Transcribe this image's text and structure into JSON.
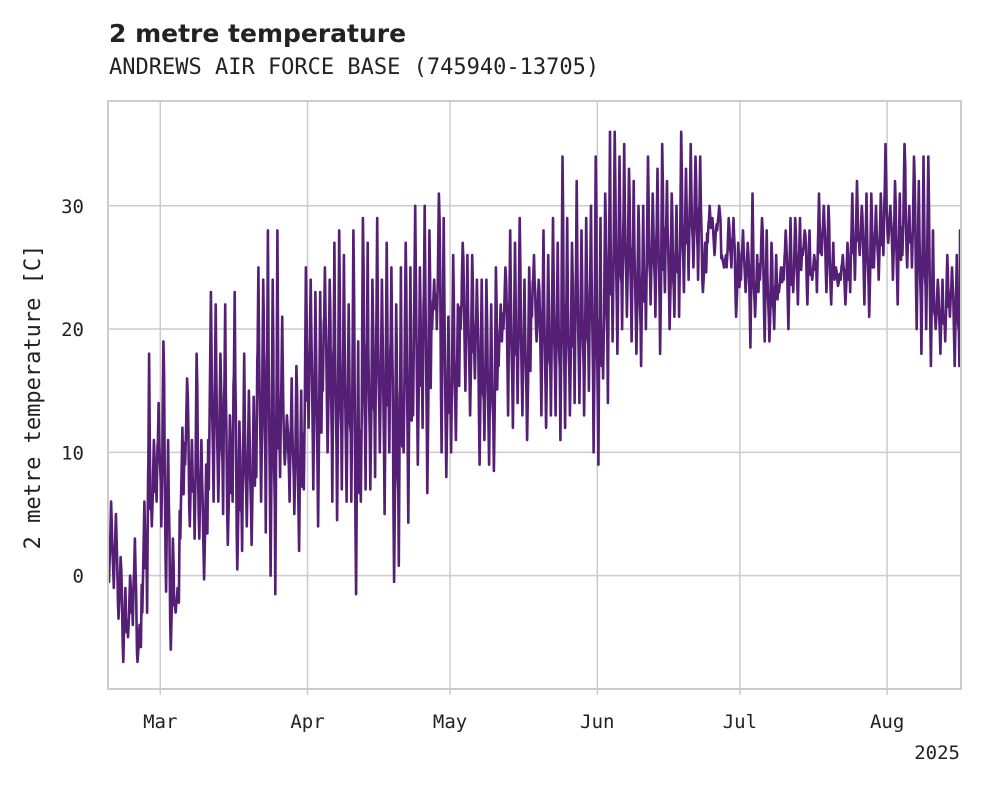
{
  "chart_data": {
    "type": "line",
    "title": "2 metre temperature",
    "subtitle": "ANDREWS AIR FORCE BASE (745940-13705)",
    "ylabel": "2 metre temperature [C]",
    "xlabel": "",
    "x_start": "2025-02-18",
    "x_end": "2025-08-16",
    "x_ticks": [
      {
        "label": "Mar",
        "date": "2025-03-01"
      },
      {
        "label": "Apr",
        "date": "2025-04-01"
      },
      {
        "label": "May",
        "date": "2025-05-01"
      },
      {
        "label": "Jun",
        "date": "2025-06-01"
      },
      {
        "label": "Jul",
        "date": "2025-07-01"
      },
      {
        "label": "Aug",
        "date": "2025-08-01"
      }
    ],
    "x_year_label": "2025",
    "ylim": [
      -9.2,
      38.5
    ],
    "y_ticks": [
      0,
      10,
      20,
      30
    ],
    "grid": true,
    "legend": "none",
    "color": "#541f74",
    "series": [
      {
        "x": [
          "2025-02-18",
          "2025-02-19",
          "2025-02-20",
          "2025-02-21",
          "2025-02-22",
          "2025-02-23",
          "2025-02-24",
          "2025-02-25",
          "2025-02-26",
          "2025-02-27",
          "2025-02-28",
          "2025-03-01",
          "2025-03-02",
          "2025-03-03",
          "2025-03-04",
          "2025-03-05",
          "2025-03-06",
          "2025-03-07",
          "2025-03-08",
          "2025-03-09",
          "2025-03-10",
          "2025-03-11",
          "2025-03-12",
          "2025-03-13",
          "2025-03-14",
          "2025-03-15",
          "2025-03-16",
          "2025-03-17",
          "2025-03-18",
          "2025-03-19",
          "2025-03-20",
          "2025-03-21",
          "2025-03-22",
          "2025-03-23",
          "2025-03-24",
          "2025-03-25",
          "2025-03-26",
          "2025-03-27",
          "2025-03-28",
          "2025-03-29",
          "2025-03-30",
          "2025-03-31",
          "2025-04-01",
          "2025-04-02",
          "2025-04-03",
          "2025-04-04",
          "2025-04-05",
          "2025-04-06",
          "2025-04-07",
          "2025-04-08",
          "2025-04-09",
          "2025-04-10",
          "2025-04-11",
          "2025-04-12",
          "2025-04-13",
          "2025-04-14",
          "2025-04-15",
          "2025-04-16",
          "2025-04-17",
          "2025-04-18",
          "2025-04-19",
          "2025-04-20",
          "2025-04-21",
          "2025-04-22",
          "2025-04-23",
          "2025-04-24",
          "2025-04-25",
          "2025-04-26",
          "2025-04-27",
          "2025-04-28",
          "2025-04-29",
          "2025-04-30",
          "2025-05-01",
          "2025-05-02",
          "2025-05-03",
          "2025-05-04",
          "2025-05-05",
          "2025-05-06",
          "2025-05-07",
          "2025-05-08",
          "2025-05-09",
          "2025-05-10",
          "2025-05-11",
          "2025-05-12",
          "2025-05-13",
          "2025-05-14",
          "2025-05-15",
          "2025-05-16",
          "2025-05-17",
          "2025-05-18",
          "2025-05-19",
          "2025-05-20",
          "2025-05-21",
          "2025-05-22",
          "2025-05-23",
          "2025-05-24",
          "2025-05-25",
          "2025-05-26",
          "2025-05-27",
          "2025-05-28",
          "2025-05-29",
          "2025-05-30",
          "2025-05-31",
          "2025-06-01",
          "2025-06-02",
          "2025-06-03",
          "2025-06-04",
          "2025-06-05",
          "2025-06-06",
          "2025-06-07",
          "2025-06-08",
          "2025-06-09",
          "2025-06-10",
          "2025-06-11",
          "2025-06-12",
          "2025-06-13",
          "2025-06-14",
          "2025-06-15",
          "2025-06-16",
          "2025-06-17",
          "2025-06-18",
          "2025-06-19",
          "2025-06-20",
          "2025-06-21",
          "2025-06-22",
          "2025-06-23",
          "2025-06-24",
          "2025-06-25",
          "2025-06-26",
          "2025-06-27",
          "2025-06-28",
          "2025-06-29",
          "2025-06-30",
          "2025-07-01",
          "2025-07-02",
          "2025-07-03",
          "2025-07-04",
          "2025-07-05",
          "2025-07-06",
          "2025-07-07",
          "2025-07-08",
          "2025-07-09",
          "2025-07-10",
          "2025-07-11",
          "2025-07-12",
          "2025-07-13",
          "2025-07-14",
          "2025-07-15",
          "2025-07-16",
          "2025-07-17",
          "2025-07-18",
          "2025-07-19",
          "2025-07-20",
          "2025-07-21",
          "2025-07-22",
          "2025-07-23",
          "2025-07-24",
          "2025-07-25",
          "2025-07-26",
          "2025-07-27",
          "2025-07-28",
          "2025-07-29",
          "2025-07-30",
          "2025-07-31",
          "2025-08-01",
          "2025-08-02",
          "2025-08-03",
          "2025-08-04",
          "2025-08-05",
          "2025-08-06",
          "2025-08-07",
          "2025-08-08",
          "2025-08-09",
          "2025-08-10",
          "2025-08-11",
          "2025-08-12",
          "2025-08-13",
          "2025-08-14",
          "2025-08-15",
          "2025-08-16"
        ],
        "min": [
          -0.5,
          -1,
          -3.5,
          -7,
          -5,
          -4,
          -7,
          -3,
          -3,
          4,
          6,
          4,
          -1.3,
          -6,
          -3,
          3,
          9,
          4,
          3,
          3,
          -0.3,
          7,
          6,
          6,
          5,
          2.5,
          6,
          0.5,
          2,
          4,
          2.5,
          8,
          6,
          3.5,
          0,
          -1.5,
          8,
          9,
          6,
          5,
          2,
          7,
          12,
          7,
          4,
          15,
          10,
          6,
          4.5,
          7,
          6,
          6,
          -1.5,
          6,
          7,
          7,
          8,
          10,
          5,
          10,
          -0.5,
          0.8,
          10,
          4.3,
          13,
          9,
          12,
          6.7,
          20,
          20,
          10,
          8,
          10,
          11,
          20,
          15,
          13,
          16,
          9,
          11,
          9,
          8.5,
          17,
          20,
          13,
          12,
          14,
          13,
          11,
          21,
          19,
          13,
          12,
          13,
          13,
          11,
          12,
          13,
          14,
          14,
          13,
          15,
          10,
          9,
          16,
          14,
          19,
          18,
          20,
          21,
          19,
          18,
          17,
          20,
          22,
          21,
          18,
          23,
          20,
          21,
          21,
          23,
          24,
          25,
          24,
          23,
          27,
          29,
          28,
          26,
          25,
          25,
          21,
          24,
          23,
          18.5,
          21,
          24,
          19,
          19,
          20,
          23,
          24,
          20,
          23,
          22,
          26,
          22,
          24,
          23,
          26,
          23,
          22,
          25,
          24,
          22,
          23,
          24,
          26,
          22,
          21,
          25,
          24,
          26,
          27,
          24,
          22,
          26,
          25,
          25,
          20,
          18,
          20,
          17,
          20,
          18,
          19,
          21,
          17,
          17,
          15.5,
          19,
          20,
          19,
          22,
          22
        ],
        "max": [
          6,
          5,
          1.5,
          -1,
          0,
          3,
          -4,
          6,
          18,
          11,
          14,
          19,
          11,
          3,
          -1,
          12,
          16,
          11,
          18,
          11,
          9,
          23,
          22,
          18,
          22,
          13,
          23,
          12.5,
          18,
          15,
          14.5,
          25,
          24,
          28,
          24,
          28,
          21,
          13,
          16,
          17,
          15,
          25,
          24,
          23,
          23,
          25,
          24,
          27,
          28,
          26,
          22,
          28,
          19,
          29,
          27,
          24,
          29,
          24,
          27,
          25,
          22,
          25,
          27,
          25,
          30,
          25,
          30,
          28,
          24,
          31,
          29,
          21,
          26,
          22,
          27,
          26,
          26,
          24,
          24,
          24,
          22,
          25,
          22,
          25,
          28,
          27,
          29,
          24,
          25,
          26,
          24,
          28,
          26,
          29,
          27,
          34,
          29,
          27,
          32,
          28,
          29,
          30,
          34,
          29,
          31,
          36,
          36,
          34,
          35,
          33,
          32,
          30,
          30,
          34,
          31,
          33,
          35,
          32,
          31,
          30,
          36,
          33,
          35,
          34,
          34,
          27,
          30,
          26,
          30,
          25,
          29,
          29,
          27,
          28,
          27,
          31,
          26,
          29,
          28,
          27,
          26,
          25,
          28,
          29,
          29,
          29,
          28,
          28,
          26,
          31,
          30,
          30,
          27,
          23.5,
          26,
          27,
          31,
          32,
          30,
          31,
          31,
          30,
          31,
          35,
          30,
          32,
          31,
          35,
          30,
          34,
          32,
          34,
          34,
          28,
          24,
          24,
          26,
          25,
          26,
          28,
          29,
          30,
          32,
          31,
          27
        ]
      }
    ]
  }
}
